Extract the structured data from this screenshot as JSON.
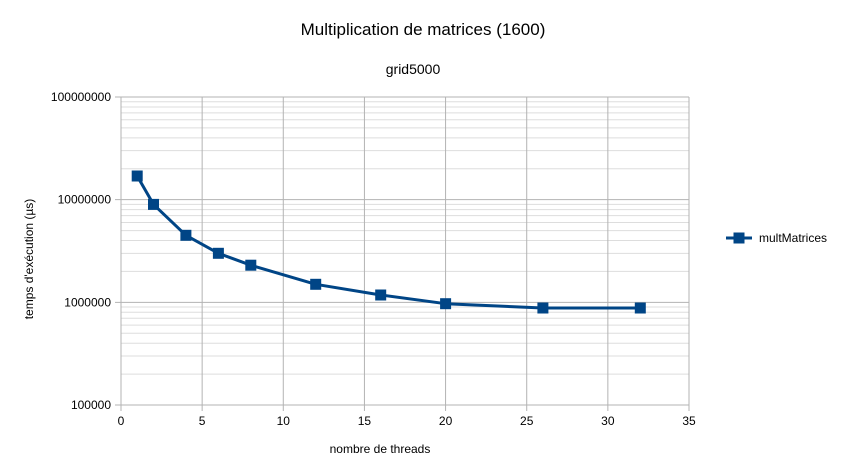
{
  "chart_data": {
    "type": "line",
    "title": "Multiplication de matrices (1600)",
    "subtitle": "grid5000",
    "xlabel": "nombre de threads",
    "ylabel": "temps d'exécution (µs)",
    "xlim": [
      0,
      35
    ],
    "ylim": [
      100000,
      100000000
    ],
    "yscale": "log",
    "x_ticks": [
      "0",
      "5",
      "10",
      "15",
      "20",
      "25",
      "30",
      "35"
    ],
    "y_ticks": [
      "100000",
      "1000000",
      "10000000",
      "100000000"
    ],
    "grid": true,
    "legend_position": "right",
    "series": [
      {
        "name": "multMatrices",
        "color": "#004586",
        "marker": "square",
        "x": [
          1,
          2,
          4,
          6,
          8,
          12,
          16,
          20,
          26,
          32
        ],
        "values": [
          17000000,
          9000000,
          4500000,
          3000000,
          2300000,
          1500000,
          1180000,
          970000,
          880000,
          880000
        ]
      }
    ]
  }
}
